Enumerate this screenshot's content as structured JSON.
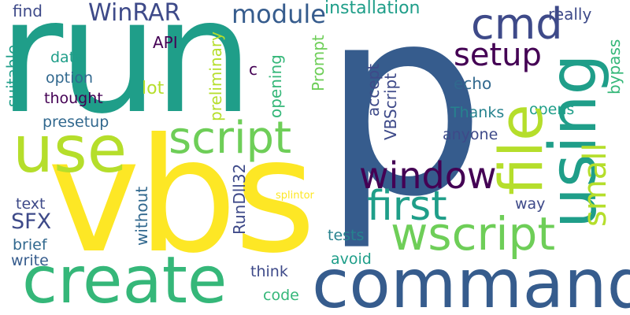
{
  "palette": {
    "background": "#ffffff",
    "navy": "#365c8d",
    "teal": "#1f9e89",
    "green": "#35b779",
    "light_green": "#6ece58",
    "lime": "#b5de2b",
    "yellow": "#fde725",
    "purple": "#440154",
    "indigo": "#3e4a89",
    "blue": "#31688e",
    "dark_teal": "#26828e"
  },
  "words": [
    {
      "id": "p",
      "text": "p",
      "color": "#365c8d"
    },
    {
      "id": "run",
      "text": "run",
      "color": "#1f9e89"
    },
    {
      "id": "vbs",
      "text": "vbs",
      "color": "#fde725"
    },
    {
      "id": "command",
      "text": "command",
      "color": "#365c8d"
    },
    {
      "id": "create",
      "text": "create",
      "color": "#35b779"
    },
    {
      "id": "use",
      "text": "use",
      "color": "#b5de2b"
    },
    {
      "id": "using",
      "text": "using",
      "color": "#1f9e89"
    },
    {
      "id": "file",
      "text": "file",
      "color": "#b5de2b"
    },
    {
      "id": "wscript",
      "text": "wscript",
      "color": "#6ece58"
    },
    {
      "id": "script",
      "text": "script",
      "color": "#6ece58"
    },
    {
      "id": "first",
      "text": "first",
      "color": "#1f9e89"
    },
    {
      "id": "window",
      "text": "window",
      "color": "#440154"
    },
    {
      "id": "cmd",
      "text": "cmd",
      "color": "#3e4a89"
    },
    {
      "id": "setup",
      "text": "setup",
      "color": "#440154"
    },
    {
      "id": "small",
      "text": "small",
      "color": "#b5de2b"
    },
    {
      "id": "module",
      "text": "module",
      "color": "#365c8d"
    },
    {
      "id": "winrar",
      "text": "WinRAR",
      "color": "#3e4a89"
    },
    {
      "id": "installation",
      "text": "installation",
      "color": "#1f9e89"
    },
    {
      "id": "find",
      "text": "find",
      "color": "#3e4a89"
    },
    {
      "id": "really",
      "text": "really",
      "color": "#3e4a89"
    },
    {
      "id": "sfx",
      "text": "SFX",
      "color": "#3e4a89"
    },
    {
      "id": "rundll32",
      "text": "RunDll32",
      "color": "#3e4a89"
    },
    {
      "id": "vbscript",
      "text": "VBScript",
      "color": "#3e4a89"
    },
    {
      "id": "accept",
      "text": "accept",
      "color": "#3e4a89"
    },
    {
      "id": "prompt",
      "text": "Prompt",
      "color": "#6ece58"
    },
    {
      "id": "opening",
      "text": "opening",
      "color": "#35b779"
    },
    {
      "id": "preliminary",
      "text": "preliminary",
      "color": "#b5de2b"
    },
    {
      "id": "lot",
      "text": "lot",
      "color": "#b5de2b"
    },
    {
      "id": "api",
      "text": "API",
      "color": "#440154"
    },
    {
      "id": "c",
      "text": "c",
      "color": "#440154"
    },
    {
      "id": "data",
      "text": "data",
      "color": "#1f9e89"
    },
    {
      "id": "option",
      "text": "option",
      "color": "#31688e"
    },
    {
      "id": "thought",
      "text": "thought",
      "color": "#440154"
    },
    {
      "id": "presetup",
      "text": "presetup",
      "color": "#31688e"
    },
    {
      "id": "suitable",
      "text": "suitable",
      "color": "#1f9e89"
    },
    {
      "id": "echo",
      "text": "echo",
      "color": "#31688e"
    },
    {
      "id": "thanks",
      "text": "Thanks",
      "color": "#26828e"
    },
    {
      "id": "opens",
      "text": "opens",
      "color": "#1f9e89"
    },
    {
      "id": "anyone",
      "text": "anyone",
      "color": "#3e4a89"
    },
    {
      "id": "bypass",
      "text": "bypass",
      "color": "#35b779"
    },
    {
      "id": "way",
      "text": "way",
      "color": "#3e4a89"
    },
    {
      "id": "without",
      "text": "without",
      "color": "#31688e"
    },
    {
      "id": "splintor",
      "text": "splintor",
      "color": "#fde725"
    },
    {
      "id": "text",
      "text": "text",
      "color": "#3e4a89"
    },
    {
      "id": "brief",
      "text": "brief",
      "color": "#31688e"
    },
    {
      "id": "write",
      "text": "write",
      "color": "#365c8d"
    },
    {
      "id": "tests",
      "text": "tests",
      "color": "#26828e"
    },
    {
      "id": "avoid",
      "text": "avoid",
      "color": "#1f9e89"
    },
    {
      "id": "think",
      "text": "think",
      "color": "#3e4a89"
    },
    {
      "id": "code",
      "text": "code",
      "color": "#35b779"
    }
  ]
}
